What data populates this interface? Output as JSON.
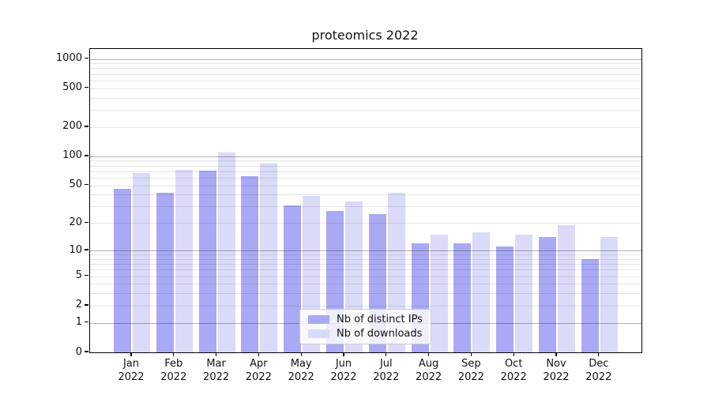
{
  "chart_data": {
    "type": "bar",
    "title": "proteomics 2022",
    "categories": [
      "Jan",
      "Feb",
      "Mar",
      "Apr",
      "May",
      "Jun",
      "Jul",
      "Aug",
      "Sep",
      "Oct",
      "Nov",
      "Dec"
    ],
    "year": "2022",
    "series": [
      {
        "name": "Nb of distinct IPs",
        "color": "#a9a9f5",
        "values": [
          46,
          42,
          71,
          62,
          31,
          27,
          25,
          12,
          12,
          11,
          14,
          8
        ]
      },
      {
        "name": "Nb of downloads",
        "color": "#dadaf9",
        "values": [
          67,
          72,
          109,
          84,
          39,
          34,
          42,
          15,
          16,
          15,
          19,
          14
        ]
      }
    ],
    "yscale": "log1p",
    "ylim": [
      0,
      1260
    ],
    "ytick_values": [
      0,
      1,
      2,
      5,
      10,
      20,
      50,
      100,
      200,
      500,
      1000
    ],
    "grid": true,
    "legend_position": "lower center"
  },
  "colors": {
    "major_grid": "rgba(0,0,0,0.30)",
    "minor_grid": "rgba(0,0,0,0.10)",
    "spine": "#000000",
    "text": "#111111"
  }
}
